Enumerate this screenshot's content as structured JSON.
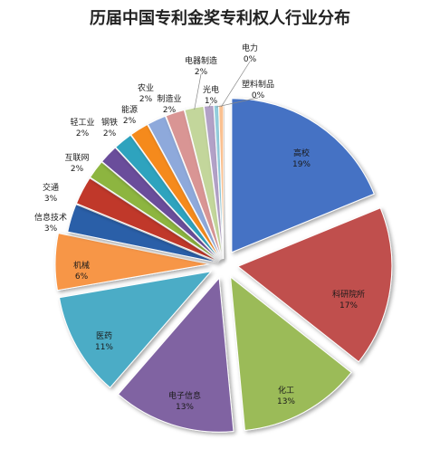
{
  "chart_data": {
    "type": "pie",
    "title": "历届中国专利金奖专利权人行业分布",
    "slices": [
      {
        "name": "高校",
        "value": 19,
        "label": "19%",
        "color": "#4472C4"
      },
      {
        "name": "科研院所",
        "value": 17,
        "label": "17%",
        "color": "#C0504D"
      },
      {
        "name": "化工",
        "value": 13,
        "label": "13%",
        "color": "#9BBB59"
      },
      {
        "name": "电子信息",
        "value": 13,
        "label": "13%",
        "color": "#8064A2"
      },
      {
        "name": "医药",
        "value": 11,
        "label": "11%",
        "color": "#4BACC6"
      },
      {
        "name": "机械",
        "value": 6,
        "label": "6%",
        "color": "#F79646"
      },
      {
        "name": "信息技术",
        "value": 3,
        "label": "3%",
        "color": "#2C5EA8"
      },
      {
        "name": "交通",
        "value": 3,
        "label": "3%",
        "color": "#C0392B"
      },
      {
        "name": "互联网",
        "value": 2,
        "label": "2%",
        "color": "#8DB53F"
      },
      {
        "name": "轻工业",
        "value": 2,
        "label": "2%",
        "color": "#6B4E9B"
      },
      {
        "name": "钢铁",
        "value": 2,
        "label": "2%",
        "color": "#2EA3BE"
      },
      {
        "name": "能源",
        "value": 2,
        "label": "2%",
        "color": "#F58A1F"
      },
      {
        "name": "农业",
        "value": 2,
        "label": "2%",
        "color": "#8EA9DB"
      },
      {
        "name": "制造业",
        "value": 2,
        "label": "2%",
        "color": "#D99594"
      },
      {
        "name": "电器制造",
        "value": 2,
        "label": "2%",
        "color": "#C3D69B"
      },
      {
        "name": "光电",
        "value": 1,
        "label": "1%",
        "color": "#B2A1C7"
      },
      {
        "name": "塑料制品",
        "value": 0.5,
        "label": "0%",
        "color": "#93CDDD"
      },
      {
        "name": "电力",
        "value": 0.5,
        "label": "0%",
        "color": "#FAC090"
      }
    ]
  }
}
